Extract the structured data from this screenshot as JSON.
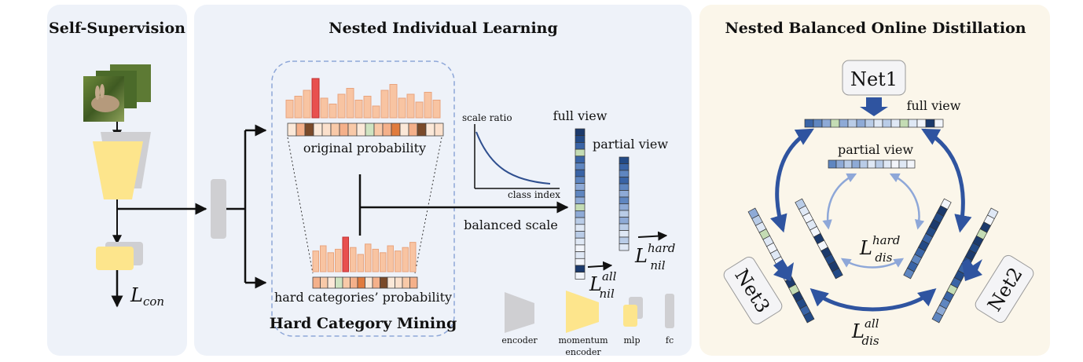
{
  "panels": {
    "self_supervision": {
      "title": "Self-Supervision",
      "loss": {
        "base": "L",
        "sub": "con"
      }
    },
    "nested_individual": {
      "title": "Nested Individual Learning",
      "original_probability": "original probability",
      "hard_probability": "hard categories’ probability",
      "hard_mining": "Hard Category Mining",
      "balanced_scale": "balanced scale",
      "full_view": "full view",
      "partial_view": "partial view",
      "curve_ylabel": "scale ratio",
      "curve_xlabel": "class index",
      "loss_all": {
        "base": "L",
        "sup": "all",
        "sub": "nil"
      },
      "loss_hard": {
        "base": "L",
        "sup": "hard",
        "sub": "nil"
      }
    },
    "nested_balanced": {
      "title": "Nested Balanced Online Distillation",
      "net1": "Net1",
      "net2": "Net2",
      "net3": "Net3",
      "full_view": "full view",
      "partial_view": "partial view",
      "loss_all": {
        "base": "L",
        "sup": "all",
        "sub": "dis"
      },
      "loss_hard": {
        "base": "L",
        "sup": "hard",
        "sub": "dis"
      }
    }
  },
  "legend": {
    "encoder": "encoder",
    "momentum_encoder_1": "momentum",
    "momentum_encoder_2": "encoder",
    "mlp": "mlp",
    "fc": "fc"
  },
  "histograms": {
    "original": [
      0.45,
      0.55,
      0.7,
      1.0,
      0.5,
      0.35,
      0.6,
      0.75,
      0.45,
      0.55,
      0.3,
      0.7,
      0.85,
      0.5,
      0.6,
      0.4,
      0.65,
      0.45
    ],
    "original_highlight": 3,
    "hard": [
      0.6,
      0.75,
      0.55,
      0.65,
      1.0,
      0.7,
      0.5,
      0.8,
      0.65,
      0.55,
      0.75,
      0.6,
      0.7,
      0.85
    ],
    "hard_highlight": 4
  },
  "colors": {
    "orange_bar": "#f8c4a2",
    "highlight": "#e8504f",
    "yellow": "#fde58c",
    "gray": "#cfcfd2",
    "panel_blue": "#eef2f9",
    "panel_cream": "#fbf6ea",
    "arrow_blue": "#2f54a0",
    "arrow_light": "#8ea7d8"
  }
}
